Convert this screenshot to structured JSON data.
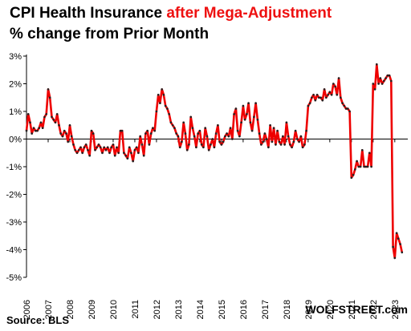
{
  "title": {
    "part1": "CPI Health Insurance ",
    "part2": "after Mega-Adjustment",
    "line2": "% change from Prior Month"
  },
  "source": "Source: BLS",
  "watermark": "WOLFSTREET.com",
  "colors": {
    "line": "#ee0000",
    "marker": "#222222",
    "axis": "#000000",
    "title_accent": "#ee1111"
  },
  "chart_data": {
    "type": "line",
    "title": "CPI Health Insurance after Mega-Adjustment — % change from Prior Month",
    "xlabel": "",
    "ylabel": "",
    "ylim": [
      -5,
      3
    ],
    "xlim": [
      2006,
      2023.6
    ],
    "grid": false,
    "y_ticks": [
      "3%",
      "2%",
      "1%",
      "0%",
      "-1%",
      "-2%",
      "-3%",
      "-4%",
      "-5%"
    ],
    "y_tick_values": [
      3,
      2,
      1,
      0,
      -1,
      -2,
      -3,
      -4,
      -5
    ],
    "x_ticks": [
      "2006",
      "2007",
      "2008",
      "2009",
      "2010",
      "2011",
      "2012",
      "2013",
      "2014",
      "2015",
      "2016",
      "2017",
      "2018",
      "2019",
      "2020",
      "2021",
      "2022",
      "2023"
    ],
    "series": [
      {
        "name": "",
        "values": [
          0.3,
          0.9,
          0.6,
          0.2,
          0.4,
          0.3,
          0.3,
          0.4,
          0.6,
          0.4,
          0.8,
          0.9,
          1.8,
          1.5,
          0.8,
          0.7,
          0.6,
          0.9,
          0.5,
          0.2,
          0.1,
          0.3,
          0.2,
          -0.1,
          0.5,
          0.1,
          -0.2,
          -0.4,
          -0.5,
          -0.4,
          -0.3,
          -0.5,
          -0.3,
          -0.2,
          -0.4,
          -0.6,
          0.3,
          0.2,
          -0.4,
          -0.3,
          -0.2,
          -0.3,
          -0.5,
          -0.3,
          -0.4,
          -0.3,
          -0.5,
          -0.3,
          -0.2,
          -0.6,
          -0.3,
          -0.5,
          0.3,
          0.3,
          -0.5,
          -0.6,
          -0.7,
          -0.3,
          -0.5,
          -0.8,
          -0.4,
          -0.3,
          -0.5,
          0.1,
          -0.2,
          -0.6,
          0.2,
          0.3,
          -0.2,
          0.2,
          0.4,
          0.3,
          1.0,
          1.6,
          1.3,
          1.8,
          1.6,
          1.2,
          1.1,
          0.9,
          0.6,
          0.5,
          0.4,
          0.2,
          0.1,
          -0.3,
          -0.1,
          0.6,
          0.2,
          -0.4,
          -0.2,
          0.8,
          0.4,
          0.1,
          -0.3,
          0.2,
          0.3,
          -0.2,
          -0.3,
          0.4,
          0.1,
          -0.4,
          -0.2,
          0.0,
          -0.3,
          0.2,
          0.5,
          -0.1,
          -0.2,
          -0.1,
          0.1,
          0.2,
          0.1,
          0.4,
          0.0,
          0.9,
          1.1,
          0.3,
          0.1,
          0.6,
          1.2,
          0.7,
          0.9,
          1.3,
          0.6,
          0.3,
          0.8,
          1.3,
          0.7,
          0.2,
          -0.2,
          -0.1,
          0.2,
          0.0,
          -0.3,
          0.5,
          -0.1,
          0.4,
          -0.2,
          0.3,
          -0.1,
          -0.2,
          0.1,
          -0.2,
          0.6,
          0.1,
          -0.2,
          -0.3,
          -0.1,
          0.3,
          0.0,
          -0.1,
          0.1,
          -0.3,
          -0.2,
          0.3,
          1.2,
          1.3,
          1.5,
          1.6,
          1.4,
          1.6,
          1.5,
          1.5,
          1.4,
          1.8,
          1.5,
          1.6,
          1.7,
          1.6,
          2.0,
          1.9,
          1.6,
          2.2,
          1.5,
          1.3,
          1.2,
          1.1,
          1.1,
          1.0,
          -1.4,
          -1.3,
          -1.1,
          -0.8,
          -1.0,
          -1.0,
          -0.4,
          -1.0,
          -1.0,
          -1.0,
          -0.5,
          -1.0,
          2.0,
          1.8,
          2.7,
          2.0,
          2.2,
          2.0,
          2.1,
          2.2,
          2.3,
          2.3,
          2.1,
          -3.9,
          -4.3,
          -3.4,
          -3.6,
          -3.8,
          -4.1
        ]
      }
    ]
  }
}
